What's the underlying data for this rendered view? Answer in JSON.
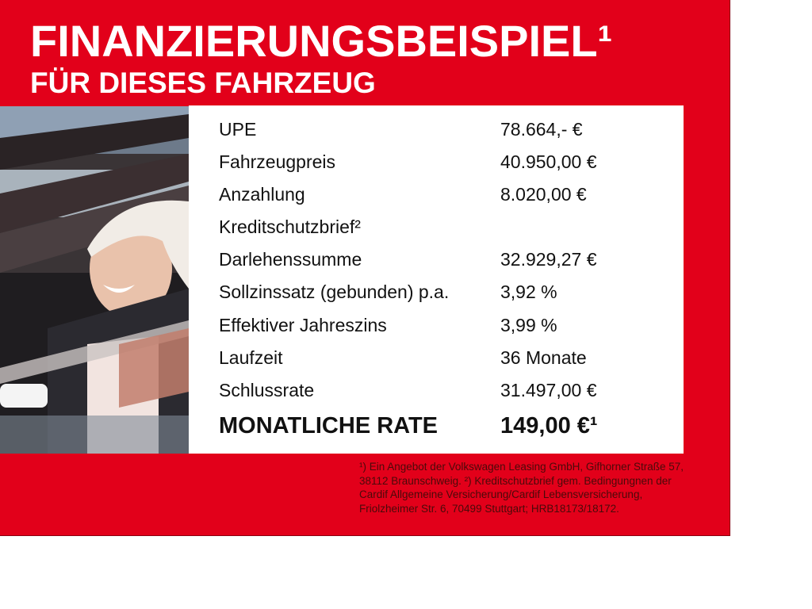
{
  "header": {
    "title": "FINANZIERUNGSBEISPIEL¹",
    "subtitle": "FÜR DIESES FAHRZEUG"
  },
  "rows": [
    {
      "label": "UPE",
      "value": "78.664,- €"
    },
    {
      "label": "Fahrzeugpreis",
      "value": "40.950,00 €"
    },
    {
      "label": "Anzahlung",
      "value": "8.020,00 €"
    },
    {
      "label": "Kreditschutzbrief²",
      "value": ""
    },
    {
      "label": "Darlehenssumme",
      "value": "32.929,27 €"
    },
    {
      "label": "Sollzinssatz (gebunden) p.a.",
      "value": "3,92 %"
    },
    {
      "label": "Effektiver Jahreszins",
      "value": "3,99 %"
    },
    {
      "label": "Laufzeit",
      "value": "36 Monate"
    },
    {
      "label": "Schlussrate",
      "value": "31.497,00 €"
    }
  ],
  "total": {
    "label": "MONATLICHE RATE",
    "value": "149,00 €¹"
  },
  "footnote": "¹) Ein Angebot der Volkswagen Leasing GmbH, Gifhorner Straße 57, 38112 Braunschweig. ²) Kreditschutzbrief gem. Bedingungnen der Cardif Allgemeine Versicherung/Cardif Lebensversicherung, Friolzheimer Str. 6, 70499 Stuttgart; HRB18173/18172.",
  "colors": {
    "brand_red": "#e2001a",
    "footnote_text": "#4a0a0a"
  }
}
